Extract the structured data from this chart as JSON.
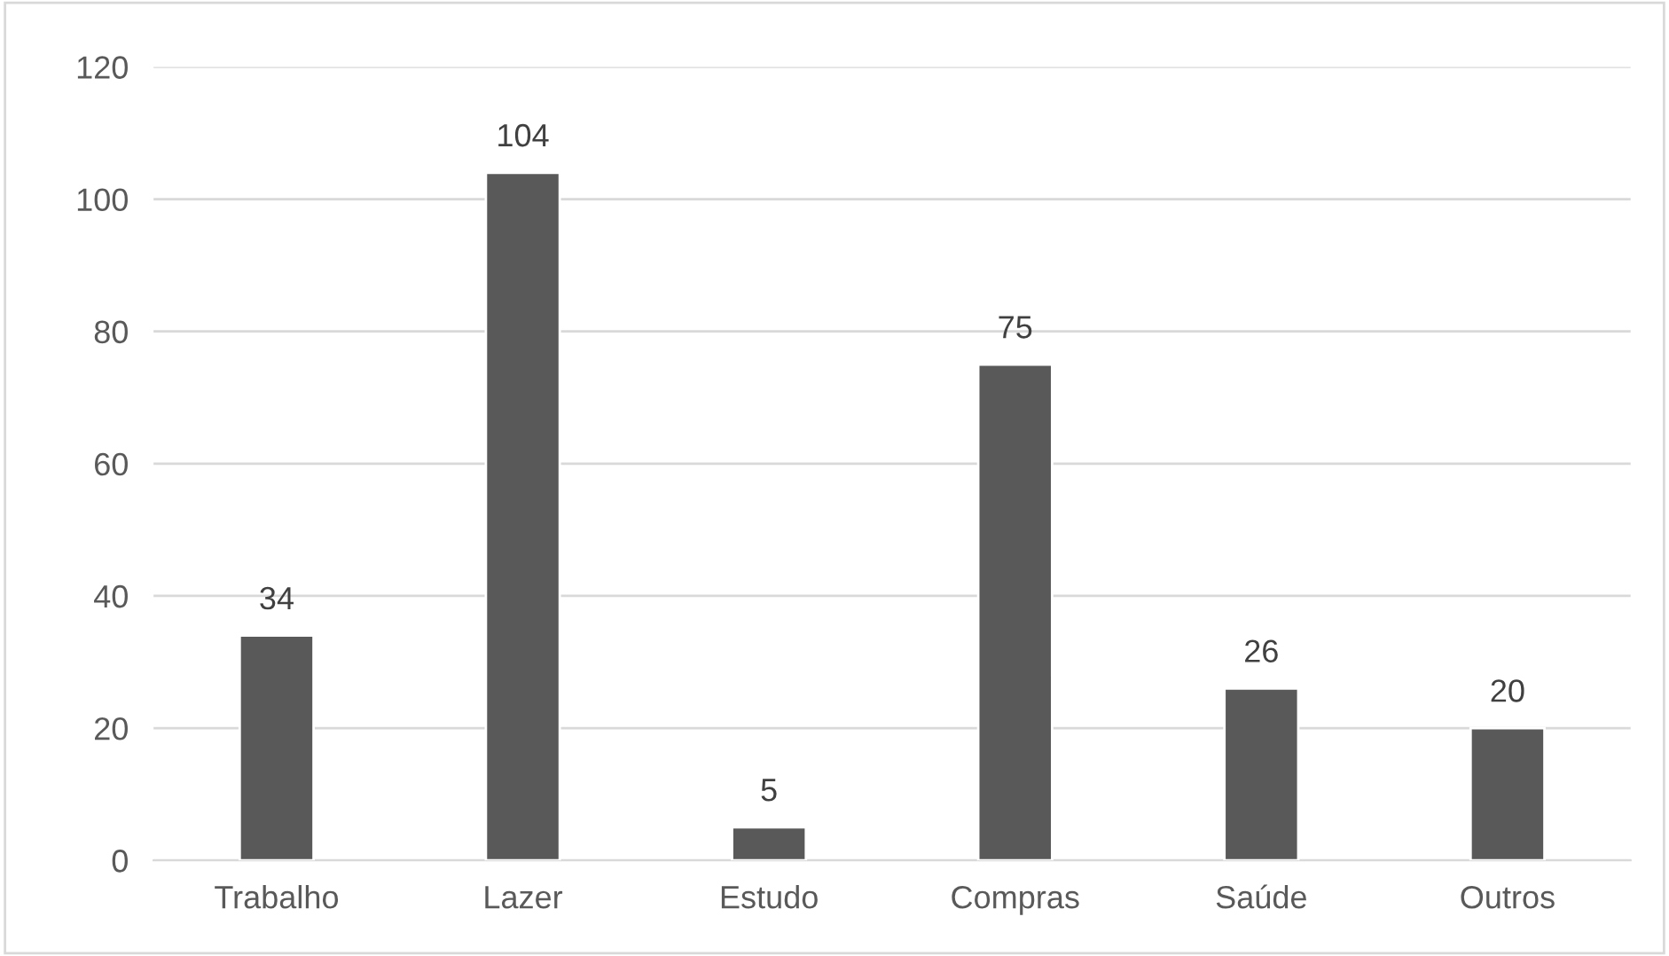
{
  "chart_data": {
    "type": "bar",
    "categories": [
      "Trabalho",
      "Lazer",
      "Estudo",
      "Compras",
      "Saúde",
      "Outros"
    ],
    "values": [
      34,
      104,
      5,
      75,
      26,
      20
    ],
    "color": "#595959",
    "ylim": [
      0,
      120
    ],
    "yticks": [
      0,
      20,
      40,
      60,
      80,
      100,
      120
    ],
    "grid": "y",
    "data_labels": true
  }
}
